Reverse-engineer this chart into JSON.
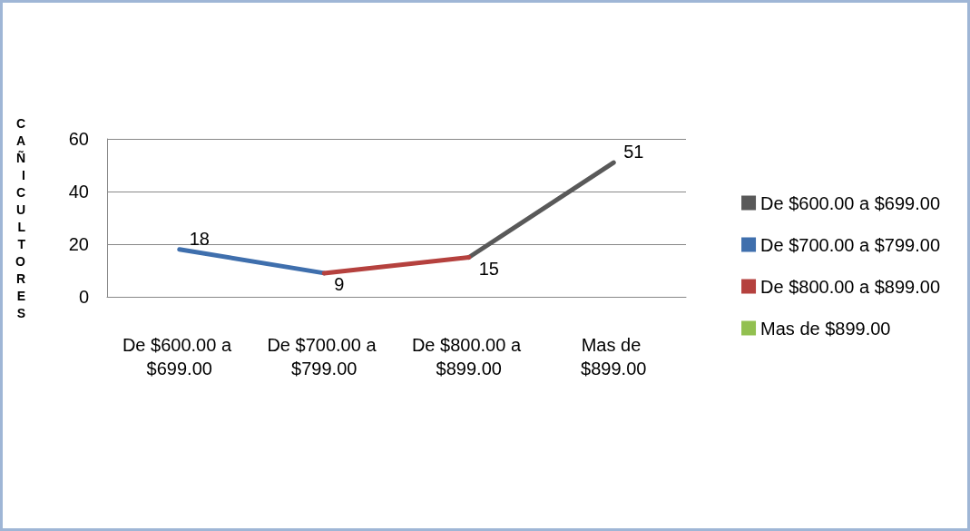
{
  "chart_data": {
    "type": "line",
    "ylabel": "CAÑICULTORES",
    "categories": [
      "De $600.00 a $699.00",
      "De $700.00 a $799.00",
      "De $800.00 a $899.00",
      "Mas de $899.00"
    ],
    "series": [
      {
        "name": "De $600.00 a $699.00",
        "color": "#595959",
        "values": [
          null,
          null,
          15,
          51
        ],
        "value_labels": [
          null,
          null,
          null,
          "51"
        ]
      },
      {
        "name": "De $700.00 a $799.00",
        "color": "#3f6fad",
        "values": [
          18,
          9,
          null,
          null
        ],
        "value_labels": [
          "18",
          null,
          null,
          null
        ]
      },
      {
        "name": "De $800.00 a $899.00",
        "color": "#b5413e",
        "values": [
          null,
          9,
          15,
          null
        ],
        "value_labels": [
          null,
          "9",
          "15",
          null
        ]
      },
      {
        "name": "Mas de $899.00",
        "color": "#92c050",
        "values": [
          null,
          null,
          null,
          null
        ]
      }
    ],
    "ylim": [
      0,
      60
    ],
    "yticks": [
      0,
      20,
      40,
      60
    ],
    "grid": "y",
    "legend": "right",
    "marker": "none"
  }
}
